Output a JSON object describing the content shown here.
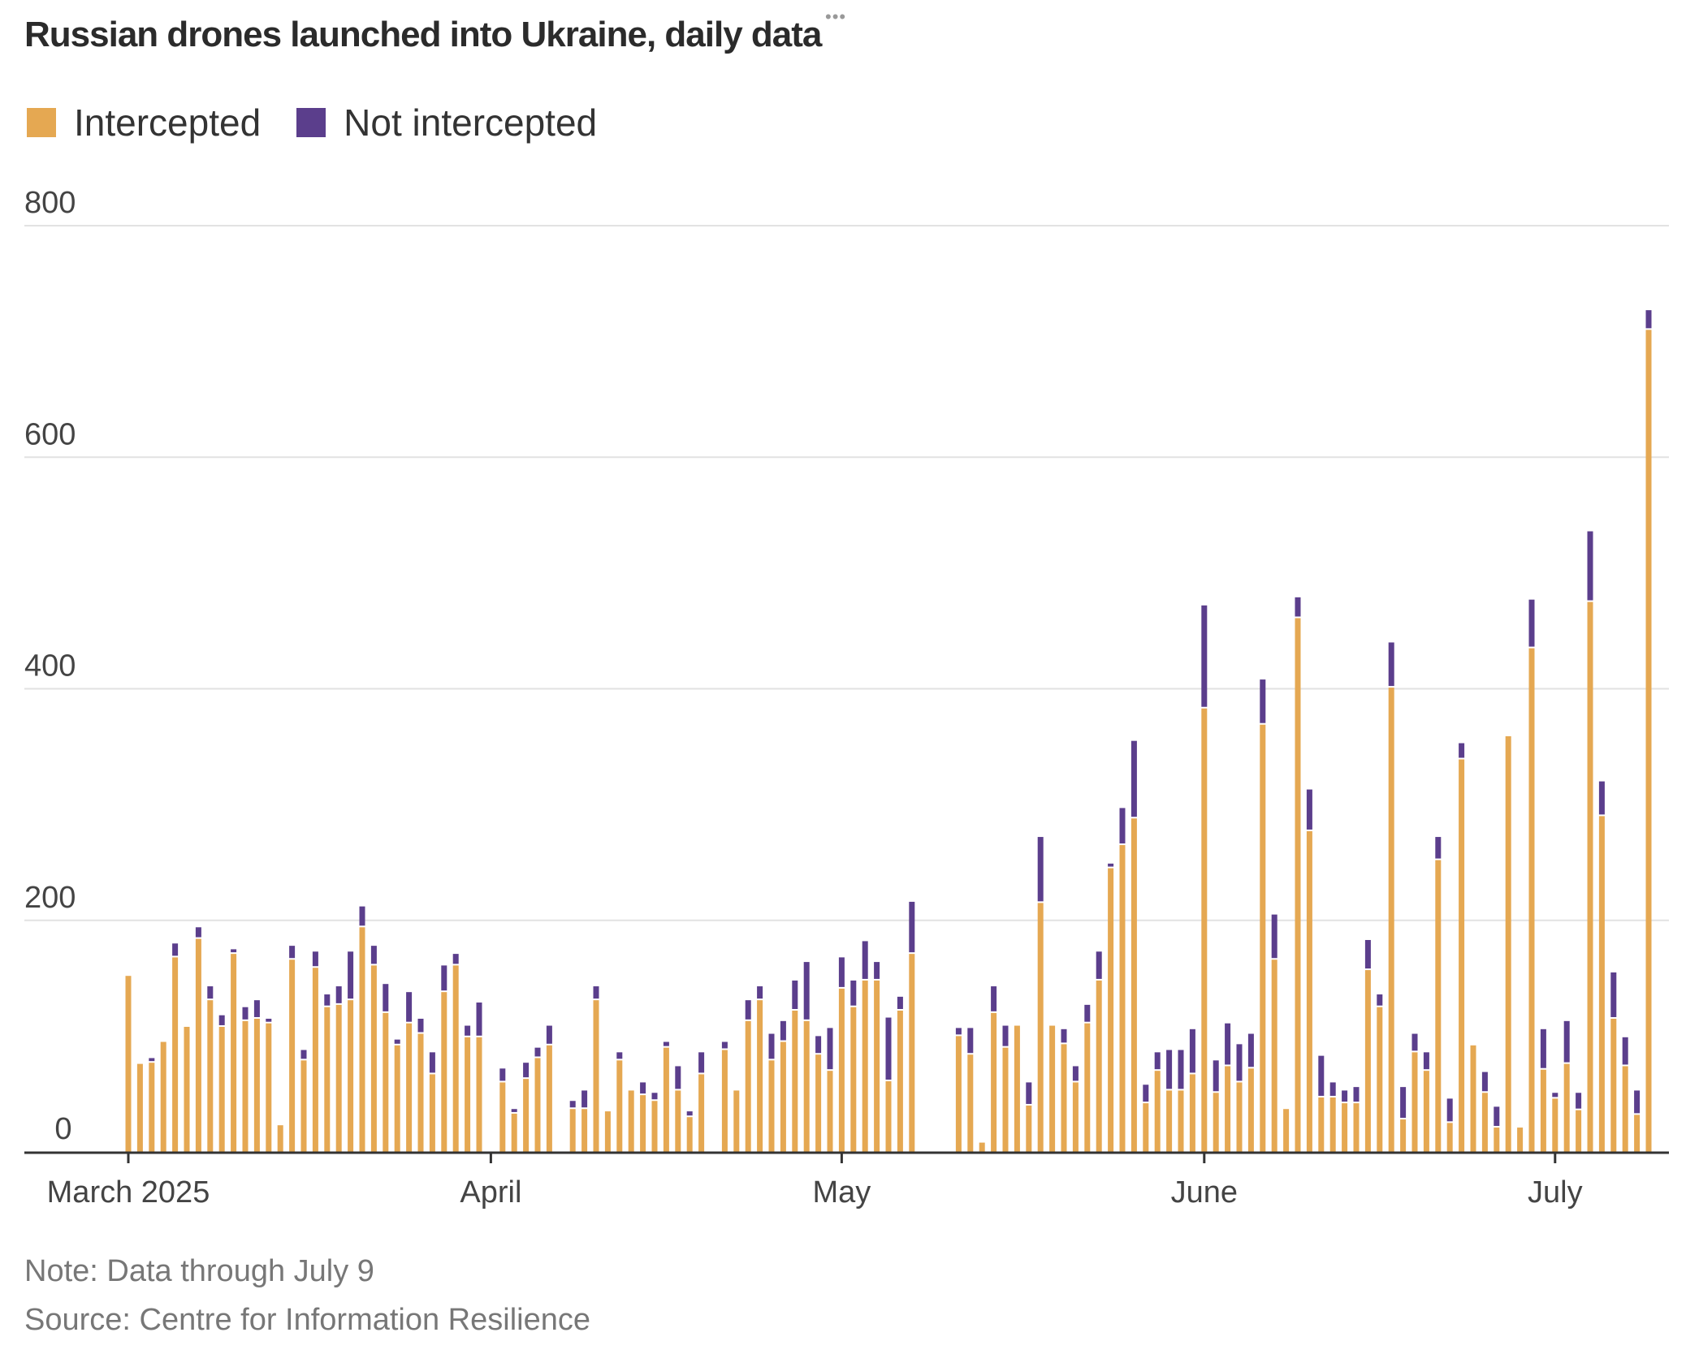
{
  "header": {
    "title": "Russian drones launched into Ukraine, daily data",
    "more_icon": "more-dots-icon"
  },
  "legend": [
    {
      "label": "Intercepted",
      "color": "#E5A852"
    },
    {
      "label": "Not intercepted",
      "color": "#5B3E8C"
    }
  ],
  "footer": {
    "note": "Note: Data through July 9",
    "source": "Source: Centre for Information Resilience"
  },
  "chart_data": {
    "type": "bar",
    "stacked": true,
    "title": "Russian drones launched into Ukraine, daily data",
    "xlabel": "",
    "ylabel": "",
    "ylim": [
      0,
      800
    ],
    "yticks": [
      0,
      200,
      400,
      600,
      800
    ],
    "grid": true,
    "legend_position": "top-left",
    "start_date": "2025-03-01",
    "end_date": "2025-07-09",
    "x_ticks": [
      {
        "day_index": 0,
        "label": "March 2025"
      },
      {
        "day_index": 31,
        "label": "April"
      },
      {
        "day_index": 61,
        "label": "May"
      },
      {
        "day_index": 92,
        "label": "June"
      },
      {
        "day_index": 122,
        "label": "July"
      }
    ],
    "series": [
      {
        "name": "Intercepted",
        "color": "#E5A852",
        "values": [
          152,
          76,
          77,
          95,
          168,
          108,
          184,
          131,
          108,
          171,
          113,
          115,
          111,
          23,
          166,
          79,
          159,
          125,
          127,
          131,
          194,
          161,
          120,
          92,
          111,
          102,
          67,
          138,
          161,
          99,
          99,
          null,
          60,
          33,
          63,
          81,
          92,
          null,
          37,
          37,
          131,
          35,
          79,
          53,
          49,
          44,
          90,
          53,
          30,
          67,
          null,
          88,
          53,
          113,
          131,
          79,
          95,
          122,
          113,
          84,
          70,
          141,
          125,
          148,
          148,
          61,
          122,
          171,
          null,
          null,
          null,
          100,
          84,
          8,
          120,
          90,
          109,
          40,
          215,
          109,
          93,
          60,
          111,
          148,
          245,
          265,
          288,
          42,
          70,
          53,
          53,
          67,
          383,
          51,
          74,
          60,
          72,
          369,
          166,
          37,
          461,
          277,
          47,
          47,
          42,
          42,
          157,
          125,
          401,
          28,
          86,
          70,
          252,
          25,
          339,
          92,
          51,
          21,
          359,
          21,
          435,
          71,
          46,
          76,
          36,
          475,
          290,
          115,
          74,
          32,
          710
        ]
      },
      {
        "name": "Not intercepted",
        "color": "#5B3E8C",
        "values": [
          0,
          0,
          4,
          0,
          12,
          0,
          10,
          12,
          10,
          4,
          12,
          16,
          4,
          0,
          12,
          9,
          14,
          11,
          16,
          42,
          18,
          17,
          25,
          5,
          27,
          13,
          19,
          23,
          10,
          10,
          30,
          null,
          12,
          4,
          14,
          9,
          17,
          null,
          7,
          16,
          12,
          0,
          7,
          0,
          11,
          7,
          5,
          21,
          5,
          19,
          null,
          7,
          0,
          18,
          12,
          23,
          18,
          26,
          51,
          16,
          37,
          27,
          23,
          34,
          16,
          55,
          12,
          45,
          null,
          null,
          null,
          7,
          23,
          0,
          23,
          19,
          0,
          20,
          57,
          0,
          13,
          14,
          16,
          25,
          4,
          32,
          67,
          16,
          16,
          35,
          35,
          39,
          89,
          28,
          37,
          33,
          30,
          39,
          39,
          0,
          18,
          36,
          36,
          13,
          11,
          14,
          26,
          11,
          39,
          28,
          16,
          16,
          20,
          21,
          14,
          0,
          18,
          18,
          0,
          0,
          42,
          35,
          5,
          37,
          15,
          61,
          30,
          40,
          25,
          21,
          17
        ]
      }
    ]
  }
}
